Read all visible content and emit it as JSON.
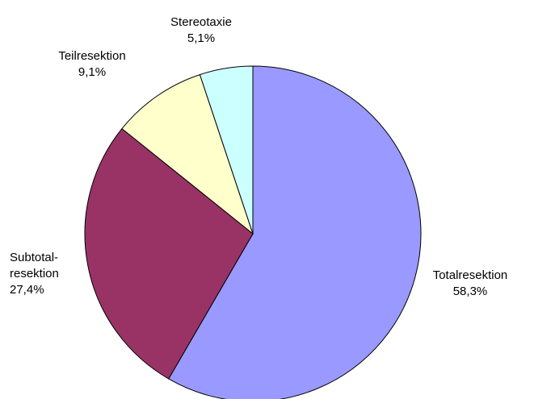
{
  "chart_data": {
    "type": "pie",
    "categories": [
      "Totalresektion",
      "Subtotal-\nresektion",
      "Teilresektion",
      "Stereotaxie"
    ],
    "values": [
      58.3,
      27.4,
      9.1,
      5.1
    ],
    "value_labels": [
      "58,3%",
      "27,4%",
      "9,1%",
      "5,1%"
    ],
    "colors": [
      "#9999ff",
      "#993366",
      "#ffffcc",
      "#ccffff"
    ]
  }
}
